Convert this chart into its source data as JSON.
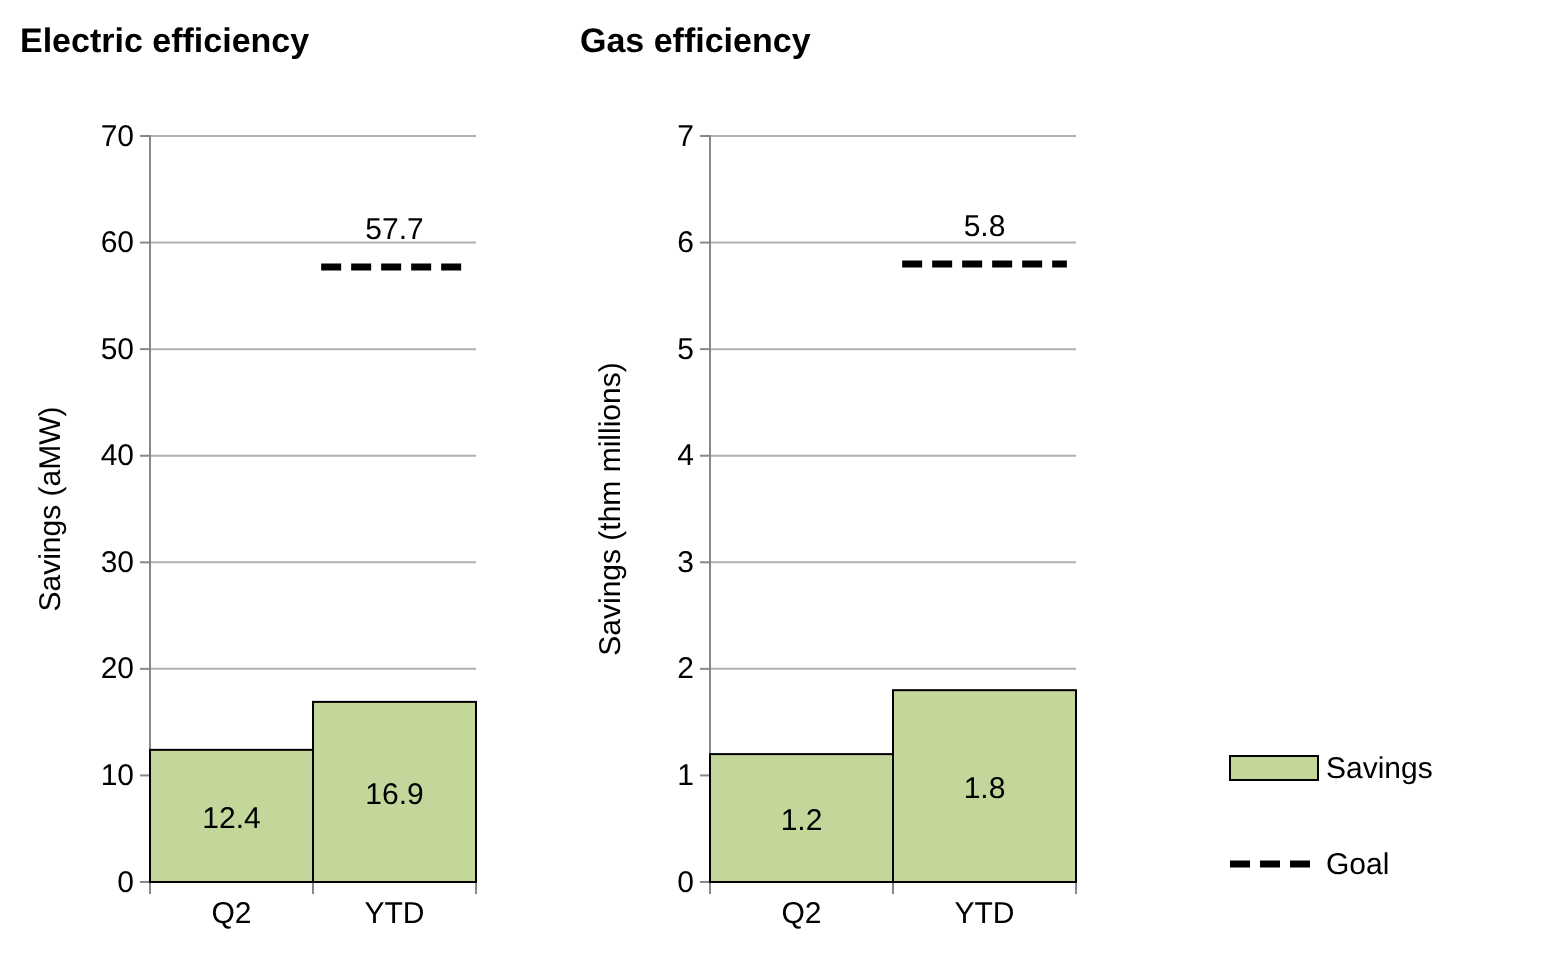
{
  "chart_data": [
    {
      "type": "bar",
      "title": "Electric efficiency",
      "ylabel": "Savings (aMW)",
      "categories": [
        "Q2",
        "YTD"
      ],
      "ylim": [
        0,
        70
      ],
      "yticks": [
        0,
        10,
        20,
        30,
        40,
        50,
        60,
        70
      ],
      "grid": "y",
      "legend": false,
      "data_labels": true,
      "series": [
        {
          "color": "#c4d79b",
          "values": [
            12.4,
            16.9
          ]
        }
      ],
      "ref_lines": [
        {
          "axis": "y",
          "value": 57.7,
          "label": "57.7",
          "color": "#000000",
          "line_style": "dashed"
        }
      ]
    },
    {
      "type": "bar",
      "title": "Gas efficiency",
      "ylabel": "Savings (thm millions)",
      "categories": [
        "Q2",
        "YTD"
      ],
      "ylim": [
        0,
        7
      ],
      "yticks": [
        0,
        1,
        2,
        3,
        4,
        5,
        6,
        7
      ],
      "grid": "y",
      "legend": "right",
      "data_labels": true,
      "series": [
        {
          "name": "Savings",
          "color": "#c4d79b",
          "values": [
            1.2,
            1.8
          ]
        },
        {
          "name": "Goal",
          "type": "line",
          "color": "#000000",
          "line_style": "dashed",
          "values": [
            null,
            null
          ]
        }
      ],
      "ref_lines": [
        {
          "axis": "y",
          "value": 5.8,
          "label": "5.8",
          "color": "#000000",
          "line_style": "dashed"
        }
      ]
    }
  ]
}
